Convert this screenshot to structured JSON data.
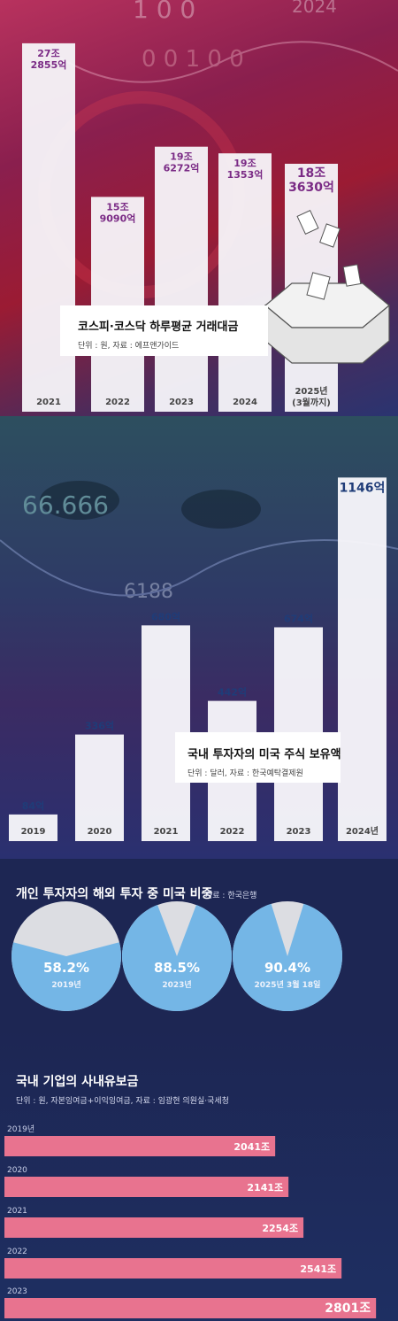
{
  "colors": {
    "purple": "#7a2a85",
    "navy": "#1f3c78",
    "pie_fill": "#74b6e6",
    "pie_empty": "#dcdde2",
    "bar_pink": "#e8738f",
    "bar_text": "#ffffff"
  },
  "decor": {
    "ticker1": "1 0 0",
    "ticker2": "0 0 1 0 0",
    "ticker3": "2024",
    "num1": "66.666",
    "num2": "6188"
  },
  "charts": [
    {
      "title": "코스피·코스닥 하루평균 거래대금",
      "note": "단위 : 원, 자료 : 에프앤가이드",
      "chart_data": {
        "type": "bar",
        "categories": [
          "2021",
          "2022",
          "2023",
          "2024",
          "2025년\n(3월까지)"
        ],
        "values": [
          27.2855,
          15.909,
          19.6272,
          19.1353,
          18.363
        ],
        "value_labels": [
          "27조\n2855억",
          "15조\n9090억",
          "19조\n6272억",
          "19조\n1353억",
          "18조\n3630억"
        ],
        "ylim": [
          0,
          28
        ]
      }
    },
    {
      "title": "국내 투자자의 미국 주식 보유액",
      "note": "단위 : 달러, 자료 : 한국예탁결제원",
      "chart_data": {
        "type": "bar",
        "categories": [
          "2019",
          "2020",
          "2021",
          "2022",
          "2023",
          "2024년"
        ],
        "values": [
          84,
          336,
          680,
          442,
          674,
          1146
        ],
        "value_labels": [
          "84억",
          "336억",
          "680억",
          "442억",
          "674억",
          "1146억"
        ],
        "ylim": [
          0,
          1200
        ]
      }
    },
    {
      "title": "개인 투자자의 해외 투자 중 미국 비중",
      "note": "자료 : 한국은행",
      "chart_data": {
        "type": "pie",
        "categories": [
          "2019년",
          "2023년",
          "2025년 3월 18일"
        ],
        "values": [
          58.2,
          88.5,
          90.4
        ],
        "value_labels": [
          "58.2%",
          "88.5%",
          "90.4%"
        ]
      }
    },
    {
      "title": "국내 기업의 사내유보금",
      "note": "단위 : 원, 자본잉여금+이익잉여금, 자료 : 임광현 의원실·국세청",
      "chart_data": {
        "type": "bar",
        "orientation": "horizontal",
        "categories": [
          "2019년",
          "2020",
          "2021",
          "2022",
          "2023"
        ],
        "values": [
          2041,
          2141,
          2254,
          2541,
          2801
        ],
        "value_labels": [
          "2041조",
          "2141조",
          "2254조",
          "2541조",
          "2801조"
        ],
        "xlim": [
          0,
          2900
        ]
      }
    }
  ]
}
